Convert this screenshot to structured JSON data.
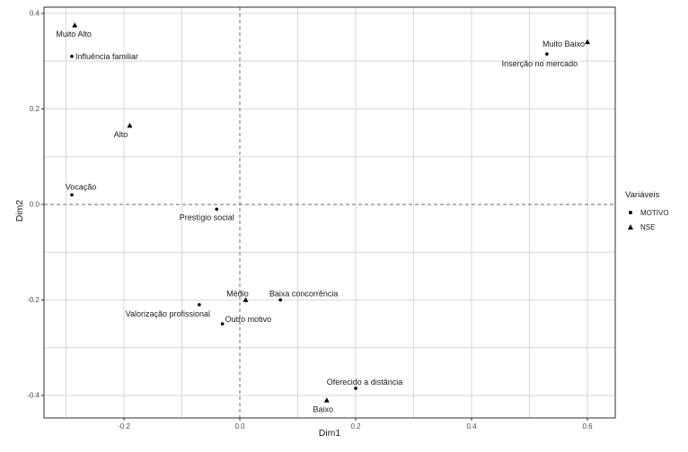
{
  "chart_data": {
    "type": "scatter",
    "title": "",
    "xlabel": "Dim1",
    "ylabel": "Dim2",
    "xlim": [
      -0.338,
      0.648
    ],
    "ylim": [
      -0.447,
      0.413
    ],
    "x_ticks": [
      -0.2,
      0.0,
      0.2,
      0.4,
      0.6
    ],
    "y_ticks": [
      0.4,
      0.2,
      0.0,
      -0.2,
      -0.4
    ],
    "grid": "on",
    "grid_step": 0.1,
    "zero_lines": "dashed",
    "legend": {
      "title": "Variáveis",
      "position": "right",
      "entries": [
        {
          "label": "MOTIVO",
          "marker": "circle"
        },
        {
          "label": "NSE",
          "marker": "triangle"
        }
      ]
    },
    "series": [
      {
        "name": "MOTIVO",
        "marker": "circle",
        "points": [
          {
            "label": "Influência familiar",
            "x": -0.29,
            "y": 0.31,
            "anchor": "start",
            "dx": 4,
            "dy": 3
          },
          {
            "label": "Vocação",
            "x": -0.29,
            "y": 0.02,
            "anchor": "middle",
            "dx": 10,
            "dy": -6
          },
          {
            "label": "Prestígio social",
            "x": -0.04,
            "y": -0.01,
            "anchor": "middle",
            "dx": -11,
            "dy": 12
          },
          {
            "label": "Valorização profissional",
            "x": -0.07,
            "y": -0.21,
            "anchor": "middle",
            "dx": -35,
            "dy": 13
          },
          {
            "label": "Outro motivo",
            "x": -0.03,
            "y": -0.25,
            "anchor": "start",
            "dx": 3,
            "dy": -2
          },
          {
            "label": "Baixa concorrência",
            "x": 0.07,
            "y": -0.2,
            "anchor": "middle",
            "dx": 26,
            "dy": -4
          },
          {
            "label": "Oferecido a distância",
            "x": 0.2,
            "y": -0.385,
            "anchor": "middle",
            "dx": 10,
            "dy": -4
          },
          {
            "label": "Inserção no mercado",
            "x": 0.53,
            "y": 0.315,
            "anchor": "middle",
            "dx": -8,
            "dy": 14
          }
        ]
      },
      {
        "name": "NSE",
        "marker": "triangle",
        "points": [
          {
            "label": "Muito Alto",
            "x": -0.285,
            "y": 0.375,
            "anchor": "middle",
            "dx": -1,
            "dy": 13
          },
          {
            "label": "Alto",
            "x": -0.19,
            "y": 0.165,
            "anchor": "middle",
            "dx": -10,
            "dy": 13
          },
          {
            "label": "Médio",
            "x": 0.01,
            "y": -0.2,
            "anchor": "middle",
            "dx": -9,
            "dy": -4
          },
          {
            "label": "Baixo",
            "x": 0.15,
            "y": -0.41,
            "anchor": "middle",
            "dx": -4,
            "dy": 13
          },
          {
            "label": "Muito Baixo",
            "x": 0.6,
            "y": 0.34,
            "anchor": "end",
            "dx": -3,
            "dy": 5
          }
        ]
      }
    ]
  },
  "colors": {
    "background": "#ffffff",
    "point": "#000000",
    "grid": "#d8d8d8",
    "zero_line": "#6e6e6e",
    "panel_border": "#2e2e2e",
    "tick_label": "#4d4d4d",
    "text": "#1a1a1a"
  }
}
